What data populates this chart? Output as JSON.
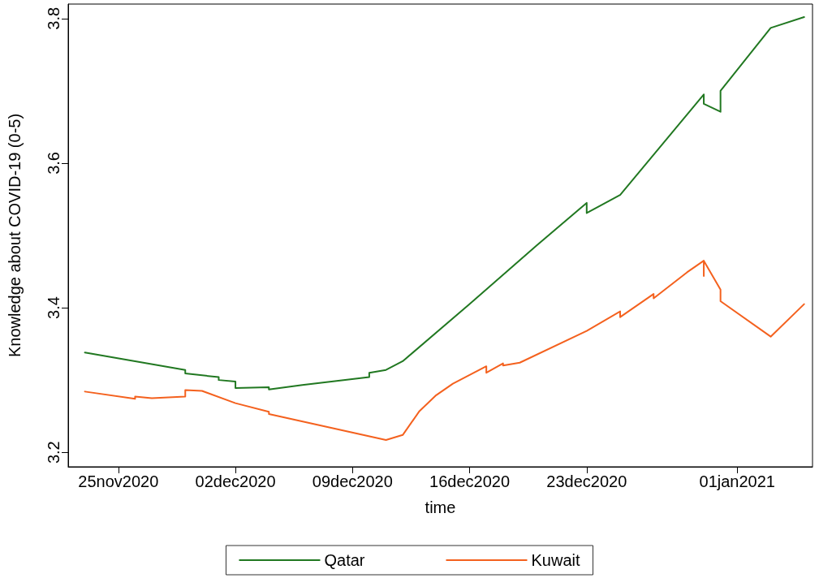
{
  "chart_data": {
    "type": "line",
    "xlabel": "time",
    "ylabel": "Knowledge about COVID-19 (0-5)",
    "xlim": [
      "2020-11-22T00:00",
      "2021-01-05T12:00"
    ],
    "ylim": [
      3.18,
      3.82
    ],
    "xticks": [
      {
        "value": "2020-11-25",
        "label": "25nov2020"
      },
      {
        "value": "2020-12-02",
        "label": "02dec2020"
      },
      {
        "value": "2020-12-09",
        "label": "09dec2020"
      },
      {
        "value": "2020-12-16",
        "label": "16dec2020"
      },
      {
        "value": "2020-12-23",
        "label": "23dec2020"
      },
      {
        "value": "2021-01-01",
        "label": "01jan2021"
      }
    ],
    "yticks": [
      3.2,
      3.4,
      3.6,
      3.8
    ],
    "grid": false,
    "legend": "bottom",
    "marker": "none",
    "line_style": "solid",
    "series": [
      {
        "name": "Qatar",
        "color": "#217821",
        "x": [
          "2020-11-23",
          "2020-11-29",
          "2020-11-29",
          "2020-12-01",
          "2020-12-01",
          "2020-12-02",
          "2020-12-02",
          "2020-12-04",
          "2020-12-04",
          "2020-12-06",
          "2020-12-10",
          "2020-12-10",
          "2020-12-11",
          "2020-12-12",
          "2020-12-16",
          "2020-12-20",
          "2020-12-23",
          "2020-12-23",
          "2020-12-25",
          "2020-12-30",
          "2020-12-30",
          "2020-12-31",
          "2020-12-31",
          "2021-01-03",
          "2021-01-05"
        ],
        "values": [
          3.338,
          3.314,
          3.309,
          3.304,
          3.3,
          3.298,
          3.289,
          3.29,
          3.287,
          3.293,
          3.304,
          3.31,
          3.314,
          3.326,
          3.405,
          3.486,
          3.545,
          3.531,
          3.556,
          3.695,
          3.682,
          3.671,
          3.7,
          3.787,
          3.802
        ]
      },
      {
        "name": "Kuwait",
        "color": "#f4611e",
        "x": [
          "2020-11-23",
          "2020-11-26",
          "2020-11-26",
          "2020-11-27",
          "2020-11-29",
          "2020-11-29",
          "2020-11-30",
          "2020-12-02",
          "2020-12-04",
          "2020-12-04",
          "2020-12-11",
          "2020-12-12",
          "2020-12-13",
          "2020-12-14",
          "2020-12-15",
          "2020-12-17",
          "2020-12-17",
          "2020-12-18",
          "2020-12-18",
          "2020-12-19",
          "2020-12-23",
          "2020-12-25",
          "2020-12-25",
          "2020-12-27",
          "2020-12-27",
          "2020-12-29",
          "2020-12-30",
          "2020-12-30",
          "2020-12-30",
          "2020-12-31",
          "2020-12-31",
          "2021-01-03",
          "2021-01-05"
        ],
        "values": [
          3.284,
          3.274,
          3.277,
          3.275,
          3.277,
          3.286,
          3.285,
          3.268,
          3.256,
          3.253,
          3.217,
          3.224,
          3.257,
          3.279,
          3.295,
          3.319,
          3.31,
          3.323,
          3.32,
          3.324,
          3.368,
          3.395,
          3.387,
          3.419,
          3.413,
          3.449,
          3.465,
          3.444,
          3.465,
          3.425,
          3.409,
          3.36,
          3.405
        ]
      }
    ]
  }
}
